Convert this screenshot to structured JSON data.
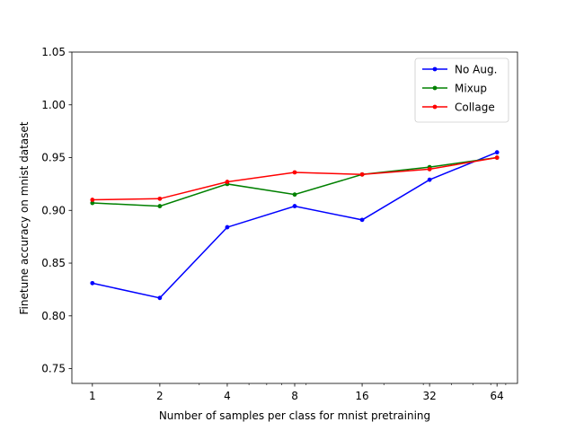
{
  "chart_data": {
    "type": "line",
    "title": "",
    "xlabel": "Number of samples per class for mnist pretraining",
    "ylabel": "Finetune accuracy on mnist dataset",
    "x": [
      1,
      2,
      4,
      8,
      16,
      32,
      64
    ],
    "x_tick_labels": [
      "1",
      "2",
      "4",
      "8",
      "16",
      "32",
      "64"
    ],
    "x_scale": "log2",
    "xlim": [
      0.81,
      79
    ],
    "ylim": [
      0.736,
      1.05
    ],
    "y_ticks": [
      0.75,
      0.8,
      0.85,
      0.9,
      0.95,
      1.0,
      1.05
    ],
    "y_tick_labels": [
      "0.75",
      "0.80",
      "0.85",
      "0.90",
      "0.95",
      "1.00",
      "1.05"
    ],
    "grid": false,
    "legend_position": "top-right",
    "series": [
      {
        "name": "No Aug.",
        "color": "#0000ff",
        "values": [
          0.831,
          0.817,
          0.884,
          0.904,
          0.891,
          0.929,
          0.955
        ]
      },
      {
        "name": "Mixup",
        "color": "#008000",
        "values": [
          0.907,
          0.904,
          0.925,
          0.915,
          0.934,
          0.941,
          0.95
        ]
      },
      {
        "name": "Collage",
        "color": "#ff0000",
        "values": [
          0.91,
          0.911,
          0.927,
          0.936,
          0.934,
          0.939,
          0.95
        ]
      }
    ]
  }
}
